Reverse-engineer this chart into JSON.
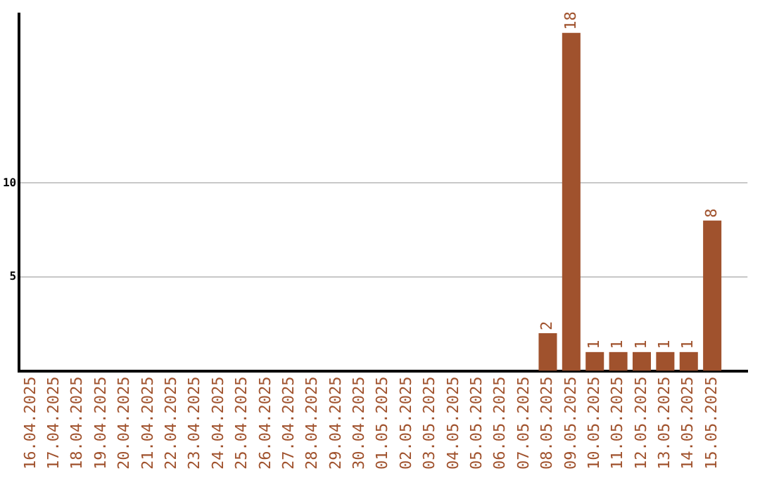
{
  "chart_data": {
    "type": "bar",
    "categories": [
      "16.04.2025",
      "17.04.2025",
      "18.04.2025",
      "19.04.2025",
      "20.04.2025",
      "21.04.2025",
      "22.04.2025",
      "23.04.2025",
      "24.04.2025",
      "25.04.2025",
      "26.04.2025",
      "27.04.2025",
      "28.04.2025",
      "29.04.2025",
      "30.04.2025",
      "01.05.2025",
      "02.05.2025",
      "03.05.2025",
      "04.05.2025",
      "05.05.2025",
      "06.05.2025",
      "07.05.2025",
      "08.05.2025",
      "09.05.2025",
      "10.05.2025",
      "11.05.2025",
      "12.05.2025",
      "13.05.2025",
      "14.05.2025",
      "15.05.2025",
      null
    ],
    "values": [
      0,
      0,
      0,
      0,
      0,
      0,
      0,
      0,
      0,
      0,
      0,
      0,
      0,
      0,
      0,
      0,
      0,
      0,
      0,
      0,
      0,
      0,
      2,
      18,
      1,
      1,
      1,
      1,
      1,
      8,
      null
    ],
    "value_labels": [
      null,
      null,
      null,
      null,
      null,
      null,
      null,
      null,
      null,
      null,
      null,
      null,
      null,
      null,
      null,
      null,
      null,
      null,
      null,
      null,
      null,
      null,
      "2",
      "18",
      "1",
      "1",
      "1",
      "1",
      "1",
      "8",
      null
    ],
    "color": "#a0522d",
    "ylim": [
      0,
      19
    ],
    "yticks": [
      5,
      10
    ],
    "grid": "y",
    "legend": false
  }
}
